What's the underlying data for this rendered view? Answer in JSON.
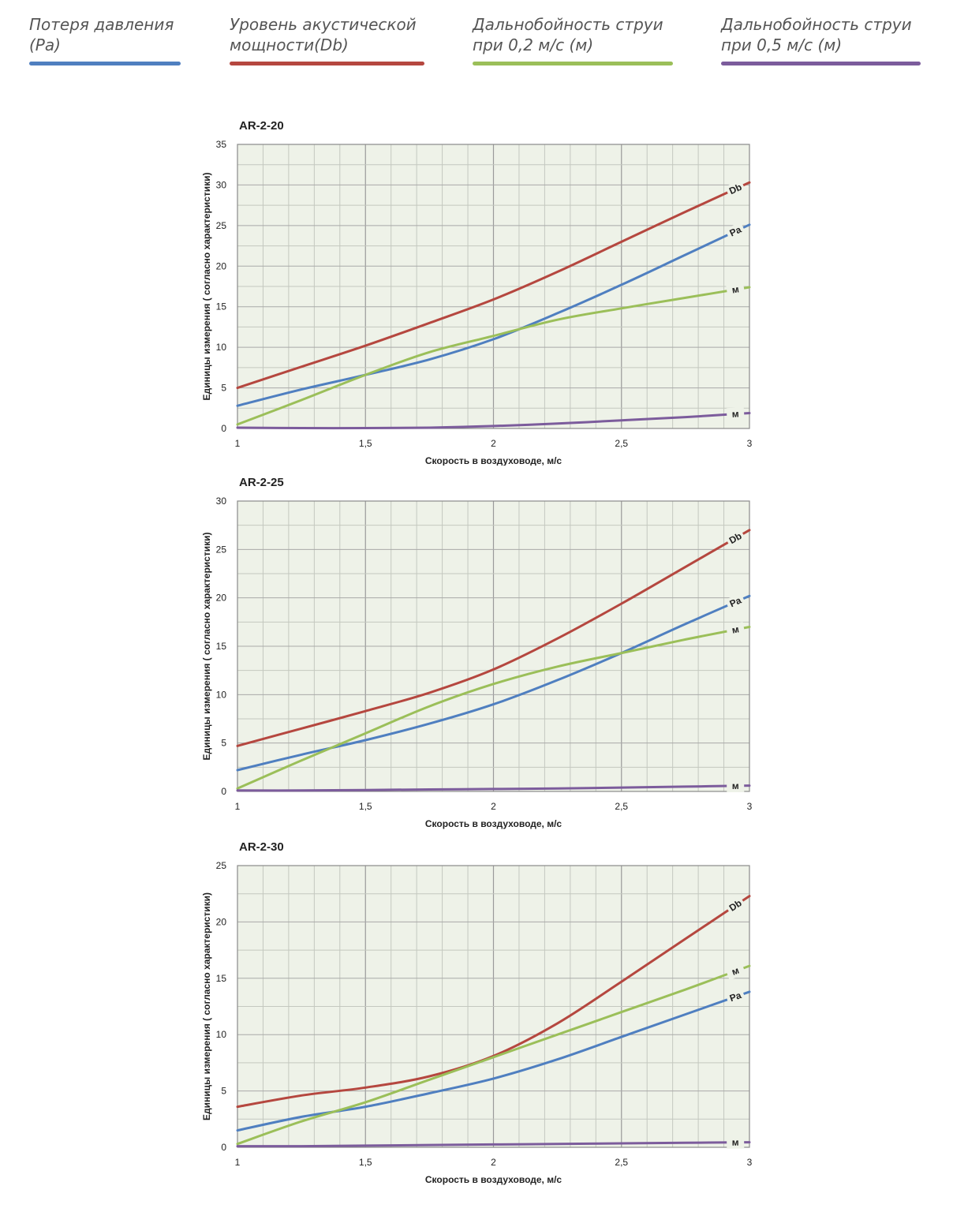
{
  "legend": [
    {
      "label": "Потеря давления\n(Pa)",
      "color": "#4f7fc0"
    },
    {
      "label": "Уровень акустической\nмощности(Db)",
      "color": "#b5473f"
    },
    {
      "label": "Дальнобойность струи\nпри 0,2 м/с (м)",
      "color": "#9bbf59"
    },
    {
      "label": "Дальнобойность струи\nпри 0,5 м/с (м)",
      "color": "#7c5c9c"
    }
  ],
  "chart_data": [
    {
      "type": "line",
      "title": "AR-2-20",
      "xlabel": "Скорость в воздуховоде, м/с",
      "ylabel": "Единицы измерения ( согласно характеристики)",
      "xlim": [
        1,
        3
      ],
      "ylim": [
        0,
        35
      ],
      "xticks": [
        "1",
        "1,5",
        "2",
        "2,5",
        "3"
      ],
      "yticks": [
        "0",
        "5",
        "10",
        "15",
        "20",
        "25",
        "30",
        "35"
      ],
      "grid": true,
      "series": [
        {
          "name": "Db",
          "color": "#b5473f",
          "x": [
            1,
            1.25,
            1.5,
            1.75,
            2,
            2.25,
            2.5,
            2.75,
            3
          ],
          "values": [
            5.0,
            7.6,
            10.2,
            13.0,
            15.9,
            19.3,
            23.0,
            26.7,
            30.3
          ]
        },
        {
          "name": "Pa",
          "color": "#4f7fc0",
          "x": [
            1,
            1.25,
            1.5,
            1.75,
            2,
            2.25,
            2.5,
            2.75,
            3
          ],
          "values": [
            2.8,
            4.8,
            6.6,
            8.5,
            11.0,
            14.2,
            17.7,
            21.4,
            25.1
          ]
        },
        {
          "name": "м",
          "color": "#9bbf59",
          "x": [
            1,
            1.25,
            1.5,
            1.75,
            2,
            2.25,
            2.5,
            2.75,
            3
          ],
          "values": [
            0.5,
            3.5,
            6.6,
            9.4,
            11.4,
            13.4,
            14.8,
            16.1,
            17.4
          ]
        },
        {
          "name": "м",
          "color": "#7c5c9c",
          "x": [
            1,
            1.25,
            1.5,
            1.75,
            2,
            2.25,
            2.5,
            2.75,
            3
          ],
          "values": [
            0.1,
            0.05,
            0.05,
            0.1,
            0.3,
            0.6,
            1.0,
            1.4,
            1.9
          ]
        }
      ]
    },
    {
      "type": "line",
      "title": "AR-2-25",
      "xlabel": "Скорость в воздуховоде, м/с",
      "ylabel": "Единицы измерения ( согласно характеристики)",
      "xlim": [
        1,
        3
      ],
      "ylim": [
        0,
        30
      ],
      "xticks": [
        "1",
        "1,5",
        "2",
        "2,5",
        "3"
      ],
      "yticks": [
        "0",
        "5",
        "10",
        "15",
        "20",
        "25",
        "30"
      ],
      "grid": true,
      "series": [
        {
          "name": "Db",
          "color": "#b5473f",
          "x": [
            1,
            1.25,
            1.5,
            1.75,
            2,
            2.25,
            2.5,
            2.75,
            3
          ],
          "values": [
            4.7,
            6.5,
            8.3,
            10.2,
            12.6,
            15.8,
            19.4,
            23.2,
            27.0
          ]
        },
        {
          "name": "Pa",
          "color": "#4f7fc0",
          "x": [
            1,
            1.25,
            1.5,
            1.75,
            2,
            2.25,
            2.5,
            2.75,
            3
          ],
          "values": [
            2.2,
            3.8,
            5.3,
            7.0,
            9.0,
            11.5,
            14.3,
            17.3,
            20.2
          ]
        },
        {
          "name": "м",
          "color": "#9bbf59",
          "x": [
            1,
            1.25,
            1.5,
            1.75,
            2,
            2.25,
            2.5,
            2.75,
            3
          ],
          "values": [
            0.3,
            3.2,
            6.0,
            8.8,
            11.1,
            12.9,
            14.3,
            15.7,
            17.0
          ]
        },
        {
          "name": "м",
          "color": "#7c5c9c",
          "x": [
            1,
            1.25,
            1.5,
            1.75,
            2,
            2.25,
            2.5,
            2.75,
            3
          ],
          "values": [
            0.1,
            0.1,
            0.15,
            0.2,
            0.25,
            0.3,
            0.4,
            0.5,
            0.6
          ]
        }
      ]
    },
    {
      "type": "line",
      "title": "AR-2-30",
      "xlabel": "Скорость в воздуховоде, м/с",
      "ylabel": "Единицы измерения ( согласно характеристики)",
      "xlim": [
        1,
        3
      ],
      "ylim": [
        0,
        25
      ],
      "xticks": [
        "1",
        "1,5",
        "2",
        "2,5",
        "3"
      ],
      "yticks": [
        "0",
        "5",
        "10",
        "15",
        "20",
        "25"
      ],
      "grid": true,
      "series": [
        {
          "name": "Db",
          "color": "#b5473f",
          "x": [
            1,
            1.25,
            1.5,
            1.75,
            2,
            2.25,
            2.5,
            2.75,
            3
          ],
          "values": [
            3.6,
            4.6,
            5.3,
            6.3,
            8.1,
            11.0,
            14.7,
            18.5,
            22.3
          ]
        },
        {
          "name": "Pa",
          "color": "#4f7fc0",
          "x": [
            1,
            1.25,
            1.5,
            1.75,
            2,
            2.25,
            2.5,
            2.75,
            3
          ],
          "values": [
            1.5,
            2.7,
            3.6,
            4.8,
            6.1,
            7.8,
            9.8,
            11.8,
            13.8
          ]
        },
        {
          "name": "м",
          "color": "#9bbf59",
          "x": [
            1,
            1.25,
            1.5,
            1.75,
            2,
            2.25,
            2.5,
            2.75,
            3
          ],
          "values": [
            0.3,
            2.3,
            4.0,
            6.0,
            8.0,
            10.0,
            12.0,
            14.0,
            16.1
          ]
        },
        {
          "name": "м",
          "color": "#7c5c9c",
          "x": [
            1,
            1.25,
            1.5,
            1.75,
            2,
            2.25,
            2.5,
            2.75,
            3
          ],
          "values": [
            0.1,
            0.1,
            0.15,
            0.2,
            0.25,
            0.3,
            0.35,
            0.4,
            0.45
          ]
        }
      ]
    }
  ]
}
